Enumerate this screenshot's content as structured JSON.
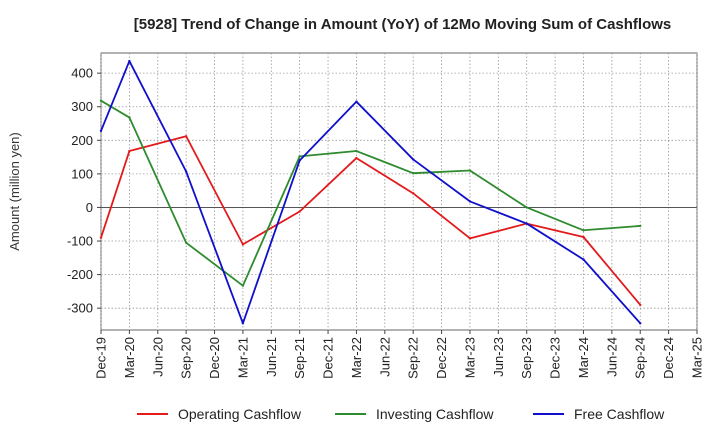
{
  "chart_data": {
    "type": "line",
    "title": "[5928]  Trend of Change in Amount (YoY) of 12Mo Moving Sum of Cashflows",
    "xlabel": "",
    "ylabel": "Amount (million yen)",
    "ylim": [
      -365,
      460
    ],
    "yticks": [
      400,
      300,
      200,
      100,
      0,
      -100,
      -200,
      -300
    ],
    "grid": true,
    "legend_position": "bottom",
    "categories": [
      "Dec-19",
      "Mar-20",
      "Jun-20",
      "Sep-20",
      "Dec-20",
      "Mar-21",
      "Jun-21",
      "Sep-21",
      "Dec-21",
      "Mar-22",
      "Jun-22",
      "Sep-22",
      "Dec-22",
      "Mar-23",
      "Jun-23",
      "Sep-23",
      "Dec-23",
      "Mar-24",
      "Jun-24",
      "Sep-24",
      "Dec-24",
      "Mar-25"
    ],
    "series": [
      {
        "name": "Operating Cashflow",
        "color": "#e31a1c",
        "values": [
          -90,
          168,
          null,
          212,
          null,
          -110,
          null,
          -12,
          null,
          147,
          null,
          42,
          null,
          -92,
          null,
          -48,
          null,
          -88,
          null,
          -290,
          null,
          null
        ]
      },
      {
        "name": "Investing Cashflow",
        "color": "#2e8b2e",
        "values": [
          318,
          268,
          null,
          -105,
          null,
          -233,
          null,
          152,
          null,
          168,
          null,
          102,
          null,
          110,
          null,
          0,
          null,
          -68,
          null,
          -55,
          null,
          null
        ]
      },
      {
        "name": "Free Cashflow",
        "color": "#1010cc",
        "values": [
          228,
          436,
          null,
          107,
          null,
          -345,
          null,
          140,
          null,
          315,
          null,
          143,
          null,
          18,
          null,
          -48,
          null,
          -155,
          null,
          -345,
          null,
          null
        ]
      }
    ]
  }
}
